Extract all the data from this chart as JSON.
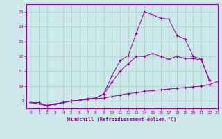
{
  "xlabel": "Windchill (Refroidissement éolien,°C)",
  "xlim": [
    -0.5,
    23
  ],
  "ylim": [
    8.5,
    15.5
  ],
  "yticks": [
    9,
    10,
    11,
    12,
    13,
    14,
    15
  ],
  "xticks": [
    0,
    1,
    2,
    3,
    4,
    5,
    6,
    7,
    8,
    9,
    10,
    11,
    12,
    13,
    14,
    15,
    16,
    17,
    18,
    19,
    20,
    21,
    22,
    23
  ],
  "bg_color": "#cce8e8",
  "line_color": "#990099",
  "grid_color": "#aacccc",
  "series1_x": [
    0,
    1,
    2,
    3,
    4,
    5,
    6,
    7,
    8,
    9,
    10,
    11,
    12,
    13,
    14,
    15,
    16,
    17,
    18,
    19,
    20,
    21,
    22,
    23
  ],
  "series1_y": [
    8.9,
    8.9,
    8.7,
    8.8,
    8.9,
    9.0,
    9.05,
    9.1,
    9.15,
    9.2,
    9.3,
    9.4,
    9.5,
    9.55,
    9.65,
    9.7,
    9.75,
    9.8,
    9.85,
    9.9,
    9.95,
    10.0,
    10.1,
    10.3
  ],
  "series2_x": [
    0,
    2,
    3,
    4,
    5,
    6,
    7,
    8,
    9,
    10,
    11,
    12,
    13,
    14,
    15,
    16,
    17,
    18,
    19,
    20,
    21,
    22
  ],
  "series2_y": [
    8.9,
    8.7,
    8.8,
    8.9,
    9.0,
    9.05,
    9.15,
    9.2,
    9.45,
    10.25,
    11.0,
    11.5,
    12.0,
    12.0,
    12.2,
    12.0,
    11.8,
    12.0,
    11.85,
    11.85,
    11.75,
    10.35
  ],
  "series3_x": [
    0,
    2,
    3,
    4,
    5,
    6,
    7,
    8,
    9,
    10,
    11,
    12,
    13,
    14,
    15,
    16,
    17,
    18,
    19,
    20,
    21,
    22
  ],
  "series3_y": [
    8.9,
    8.7,
    8.8,
    8.9,
    9.0,
    9.05,
    9.15,
    9.2,
    9.5,
    10.7,
    11.7,
    12.05,
    13.55,
    15.0,
    14.8,
    14.55,
    14.5,
    13.4,
    13.15,
    12.0,
    11.8,
    10.4
  ]
}
